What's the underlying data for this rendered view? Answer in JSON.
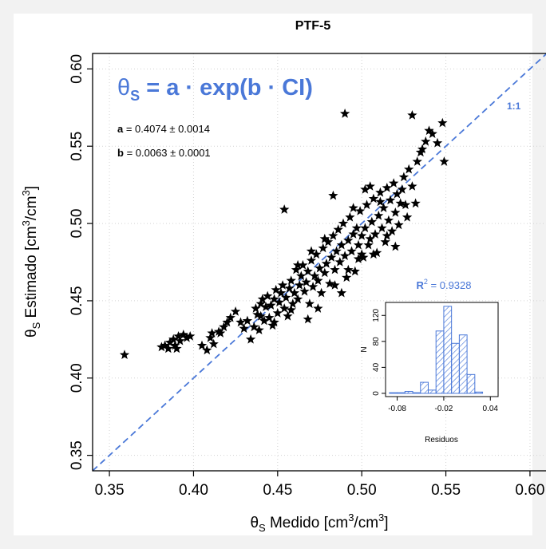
{
  "chart_data": [
    {
      "type": "scatter",
      "title": "PTF-5",
      "xlabel": {
        "symbol": "θ",
        "sub": "S",
        "text": " Medido [cm",
        "sup1": "3",
        "mid": "/cm",
        "sup2": "3",
        "end": "]"
      },
      "ylabel": {
        "symbol": "θ",
        "sub": "S",
        "text": " Estimado [cm",
        "sup1": "3",
        "mid": "/cm",
        "sup2": "3",
        "end": "]"
      },
      "xlim": [
        0.34,
        0.61
      ],
      "ylim": [
        0.34,
        0.61
      ],
      "xticks": [
        0.35,
        0.4,
        0.45,
        0.5,
        0.55,
        0.6
      ],
      "yticks": [
        0.35,
        0.4,
        0.45,
        0.5,
        0.55,
        0.6
      ],
      "xtick_labels": [
        "0.35",
        "0.40",
        "0.45",
        "0.50",
        "0.55",
        "0.60"
      ],
      "ytick_labels": [
        "0.35",
        "0.40",
        "0.45",
        "0.50",
        "0.55",
        "0.60"
      ],
      "grid": true,
      "marker": "star",
      "marker_color": "#000000",
      "reference_line": {
        "label": "1:1",
        "color": "#4a78d8",
        "style": "dashed"
      },
      "equation": {
        "lhs_symbol": "θ",
        "lhs_sub": "S",
        "rhs": " = a · exp(b · CI)",
        "color": "#4a78d8"
      },
      "params": [
        {
          "name": "a",
          "text": " = 0.4074 ± 0.0014"
        },
        {
          "name": "b",
          "text": " = 0.0063 ± 0.0001"
        }
      ],
      "points": [
        [
          0.359,
          0.415
        ],
        [
          0.381,
          0.42
        ],
        [
          0.383,
          0.421
        ],
        [
          0.385,
          0.419
        ],
        [
          0.386,
          0.423
        ],
        [
          0.388,
          0.425
        ],
        [
          0.389,
          0.421
        ],
        [
          0.39,
          0.419
        ],
        [
          0.391,
          0.427
        ],
        [
          0.392,
          0.424
        ],
        [
          0.394,
          0.428
        ],
        [
          0.396,
          0.426
        ],
        [
          0.398,
          0.427
        ],
        [
          0.405,
          0.421
        ],
        [
          0.408,
          0.418
        ],
        [
          0.41,
          0.426
        ],
        [
          0.411,
          0.429
        ],
        [
          0.412,
          0.422
        ],
        [
          0.415,
          0.43
        ],
        [
          0.416,
          0.429
        ],
        [
          0.418,
          0.433
        ],
        [
          0.42,
          0.436
        ],
        [
          0.422,
          0.439
        ],
        [
          0.425,
          0.443
        ],
        [
          0.428,
          0.436
        ],
        [
          0.43,
          0.432
        ],
        [
          0.432,
          0.437
        ],
        [
          0.434,
          0.425
        ],
        [
          0.436,
          0.433
        ],
        [
          0.437,
          0.445
        ],
        [
          0.438,
          0.441
        ],
        [
          0.439,
          0.431
        ],
        [
          0.44,
          0.448
        ],
        [
          0.441,
          0.451
        ],
        [
          0.442,
          0.437
        ],
        [
          0.443,
          0.446
        ],
        [
          0.444,
          0.453
        ],
        [
          0.445,
          0.439
        ],
        [
          0.446,
          0.447
        ],
        [
          0.447,
          0.434
        ],
        [
          0.448,
          0.451
        ],
        [
          0.449,
          0.457
        ],
        [
          0.45,
          0.442
        ],
        [
          0.451,
          0.449
        ],
        [
          0.452,
          0.455
        ],
        [
          0.453,
          0.46
        ],
        [
          0.454,
          0.445
        ],
        [
          0.455,
          0.452
        ],
        [
          0.456,
          0.44
        ],
        [
          0.457,
          0.458
        ],
        [
          0.458,
          0.463
        ],
        [
          0.459,
          0.448
        ],
        [
          0.46,
          0.455
        ],
        [
          0.461,
          0.47
        ],
        [
          0.462,
          0.451
        ],
        [
          0.463,
          0.46
        ],
        [
          0.464,
          0.466
        ],
        [
          0.465,
          0.473
        ],
        [
          0.466,
          0.456
        ],
        [
          0.467,
          0.462
        ],
        [
          0.468,
          0.469
        ],
        [
          0.469,
          0.448
        ],
        [
          0.47,
          0.476
        ],
        [
          0.471,
          0.459
        ],
        [
          0.472,
          0.466
        ],
        [
          0.473,
          0.48
        ],
        [
          0.474,
          0.463
        ],
        [
          0.475,
          0.471
        ],
        [
          0.476,
          0.455
        ],
        [
          0.477,
          0.484
        ],
        [
          0.478,
          0.468
        ],
        [
          0.479,
          0.474
        ],
        [
          0.48,
          0.488
        ],
        [
          0.481,
          0.461
        ],
        [
          0.482,
          0.478
        ],
        [
          0.483,
          0.492
        ],
        [
          0.484,
          0.47
        ],
        [
          0.485,
          0.482
        ],
        [
          0.486,
          0.496
        ],
        [
          0.487,
          0.475
        ],
        [
          0.488,
          0.486
        ],
        [
          0.489,
          0.5
        ],
        [
          0.49,
          0.479
        ],
        [
          0.491,
          0.465
        ],
        [
          0.492,
          0.489
        ],
        [
          0.493,
          0.504
        ],
        [
          0.494,
          0.482
        ],
        [
          0.495,
          0.493
        ],
        [
          0.496,
          0.469
        ],
        [
          0.497,
          0.497
        ],
        [
          0.498,
          0.486
        ],
        [
          0.499,
          0.508
        ],
        [
          0.5,
          0.492
        ],
        [
          0.501,
          0.478
        ],
        [
          0.502,
          0.497
        ],
        [
          0.503,
          0.512
        ],
        [
          0.504,
          0.486
        ],
        [
          0.505,
          0.49
        ],
        [
          0.506,
          0.501
        ],
        [
          0.507,
          0.516
        ],
        [
          0.508,
          0.493
        ],
        [
          0.509,
          0.481
        ],
        [
          0.51,
          0.505
        ],
        [
          0.511,
          0.52
        ],
        [
          0.512,
          0.497
        ],
        [
          0.513,
          0.51
        ],
        [
          0.514,
          0.488
        ],
        [
          0.515,
          0.523
        ],
        [
          0.516,
          0.502
        ],
        [
          0.517,
          0.515
        ],
        [
          0.518,
          0.495
        ],
        [
          0.519,
          0.526
        ],
        [
          0.52,
          0.507
        ],
        [
          0.521,
          0.519
        ],
        [
          0.522,
          0.499
        ],
        [
          0.523,
          0.513
        ],
        [
          0.524,
          0.522
        ],
        [
          0.525,
          0.53
        ],
        [
          0.526,
          0.512
        ],
        [
          0.527,
          0.504
        ],
        [
          0.528,
          0.535
        ],
        [
          0.53,
          0.524
        ],
        [
          0.532,
          0.513
        ],
        [
          0.533,
          0.54
        ],
        [
          0.535,
          0.546
        ],
        [
          0.536,
          0.548
        ],
        [
          0.538,
          0.553
        ],
        [
          0.54,
          0.56
        ],
        [
          0.542,
          0.558
        ],
        [
          0.545,
          0.552
        ],
        [
          0.548,
          0.565
        ],
        [
          0.549,
          0.54
        ],
        [
          0.53,
          0.57
        ],
        [
          0.49,
          0.571
        ],
        [
          0.454,
          0.509
        ],
        [
          0.483,
          0.518
        ],
        [
          0.502,
          0.522
        ],
        [
          0.511,
          0.514
        ],
        [
          0.474,
          0.445
        ],
        [
          0.468,
          0.438
        ],
        [
          0.458,
          0.444
        ],
        [
          0.448,
          0.436
        ],
        [
          0.44,
          0.44
        ],
        [
          0.462,
          0.473
        ],
        [
          0.47,
          0.482
        ],
        [
          0.478,
          0.49
        ],
        [
          0.484,
          0.46
        ],
        [
          0.492,
          0.47
        ],
        [
          0.5,
          0.48
        ],
        [
          0.495,
          0.51
        ],
        [
          0.505,
          0.524
        ],
        [
          0.515,
          0.492
        ],
        [
          0.52,
          0.485
        ],
        [
          0.507,
          0.48
        ],
        [
          0.498,
          0.477
        ],
        [
          0.488,
          0.455
        ]
      ],
      "inset": {
        "type": "histogram",
        "title": {
          "prefix": "R",
          "sup": "2",
          "value": " = 0.9328"
        },
        "title_color": "#4a78d8",
        "xlabel": "Residuos",
        "ylabel": "N",
        "xlim": [
          -0.095,
          0.05
        ],
        "ylim": [
          -5,
          140
        ],
        "xticks": [
          -0.08,
          -0.02,
          0.04
        ],
        "xtick_labels": [
          "-0.08",
          "-0.02",
          "0.04"
        ],
        "yticks": [
          0,
          40,
          80,
          120
        ],
        "ytick_labels": [
          "0",
          "40",
          "80",
          "120"
        ],
        "bin_width": 0.01,
        "bins": [
          {
            "x0": -0.09,
            "count": 1
          },
          {
            "x0": -0.08,
            "count": 1
          },
          {
            "x0": -0.07,
            "count": 3
          },
          {
            "x0": -0.06,
            "count": 1
          },
          {
            "x0": -0.05,
            "count": 17
          },
          {
            "x0": -0.04,
            "count": 5
          },
          {
            "x0": -0.03,
            "count": 96
          },
          {
            "x0": -0.02,
            "count": 134
          },
          {
            "x0": -0.01,
            "count": 77
          },
          {
            "x0": 0.0,
            "count": 90
          },
          {
            "x0": 0.01,
            "count": 29
          },
          {
            "x0": 0.02,
            "count": 2
          }
        ],
        "bar_color": "#4a78d8"
      }
    }
  ]
}
